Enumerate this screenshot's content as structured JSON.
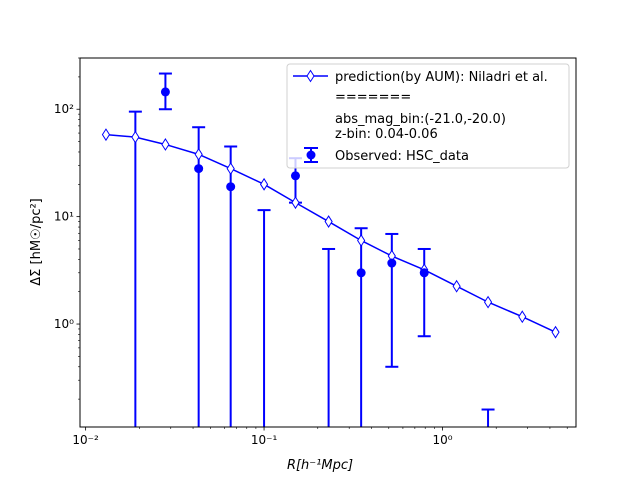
{
  "chart_data": {
    "type": "line",
    "xlabel": "R[h⁻¹Mpc]",
    "ylabel": "ΔΣ [hM☉/pc²]",
    "x_scale": "log",
    "y_scale": "log",
    "xlim": [
      0.0093,
      5.6
    ],
    "ylim": [
      0.11,
      300
    ],
    "x_ticks": [
      {
        "value": 0.01,
        "label": "10⁻²"
      },
      {
        "value": 0.1,
        "label": "10⁻¹"
      },
      {
        "value": 1,
        "label": "10⁰"
      }
    ],
    "y_ticks": [
      {
        "value": 1,
        "label": "10⁰"
      },
      {
        "value": 10,
        "label": "10¹"
      },
      {
        "value": 100,
        "label": "10²"
      }
    ],
    "grid": false,
    "legend_position": "top-right",
    "legend": {
      "prediction_label": "prediction(by AUM): Niladri et al.",
      "separator": "=======",
      "bin_line1": "abs_mag_bin:(-21.0,-20.0)",
      "bin_line2": "z-bin: 0.04-0.06",
      "observed_label": "Observed: HSC_data"
    },
    "colors": {
      "series": "#0000ff"
    },
    "series": [
      {
        "name": "prediction(by AUM): Niladri et al.",
        "kind": "line",
        "marker": "thin-diamond-open",
        "x": [
          0.013,
          0.019,
          0.028,
          0.043,
          0.065,
          0.1,
          0.15,
          0.23,
          0.35,
          0.52,
          0.79,
          1.2,
          1.8,
          2.8,
          4.3
        ],
        "y": [
          58,
          55,
          47,
          38,
          28,
          20,
          13.5,
          9.0,
          6.0,
          4.3,
          3.2,
          2.25,
          1.6,
          1.17,
          0.84
        ]
      },
      {
        "name": "Observed: HSC_data",
        "kind": "errorbar",
        "marker": "circle-filled",
        "points": [
          {
            "x": 0.019,
            "y": null,
            "lo": 0.11,
            "hi": 95
          },
          {
            "x": 0.028,
            "y": 145,
            "lo": 100,
            "hi": 215
          },
          {
            "x": 0.043,
            "y": 28,
            "lo": 0.11,
            "hi": 68
          },
          {
            "x": 0.065,
            "y": 19,
            "lo": 0.11,
            "hi": 45
          },
          {
            "x": 0.1,
            "y": null,
            "lo": 0.11,
            "hi": 11.5
          },
          {
            "x": 0.15,
            "y": 24,
            "lo": 13.5,
            "hi": 35
          },
          {
            "x": 0.23,
            "y": null,
            "lo": 0.11,
            "hi": 5.0
          },
          {
            "x": 0.35,
            "y": 3.0,
            "lo": 0.11,
            "hi": 7.8
          },
          {
            "x": 0.52,
            "y": 3.7,
            "lo": 0.4,
            "hi": 6.9
          },
          {
            "x": 0.79,
            "y": 3.0,
            "lo": 0.77,
            "hi": 5.0
          },
          {
            "x": 1.8,
            "y": null,
            "lo": 0.11,
            "hi": 0.16
          }
        ]
      }
    ]
  }
}
